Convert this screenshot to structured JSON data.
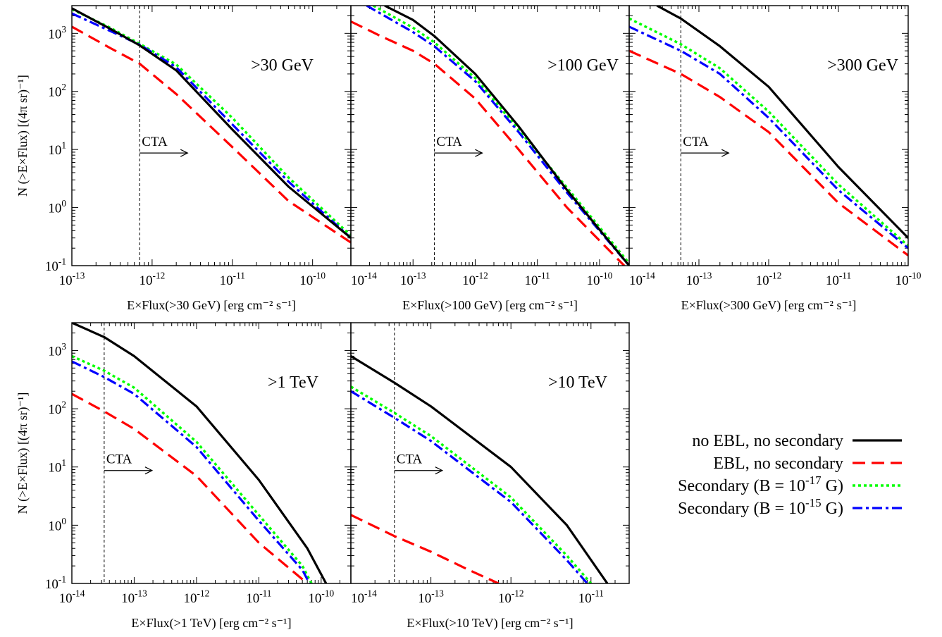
{
  "chart_data": [
    {
      "type": "line",
      "panel_label": ">30 GeV",
      "xlabel": "E×Flux(>30 GeV) [erg cm⁻² s⁻¹]",
      "ylabel": "N (>E×Flux) [(4π sr)⁻¹]",
      "x_scale": "log",
      "y_scale": "log",
      "xlim": [
        1e-13,
        3e-10
      ],
      "ylim": [
        0.1,
        3000
      ],
      "x_tick_labels": [
        "10-13",
        "10-12",
        "10-11",
        "10-10"
      ],
      "y_tick_labels": [
        "10-1",
        "100",
        "101",
        "102",
        "103"
      ],
      "cta_sensitivity": 7e-13,
      "annotation": "CTA",
      "series": [
        {
          "name": "no EBL, no secondary",
          "x": [
            1e-13,
            3e-13,
            7e-13,
            2e-12,
            1e-11,
            5e-11,
            3e-10
          ],
          "y": [
            2700,
            1200,
            620,
            230,
            22,
            2.3,
            0.3
          ]
        },
        {
          "name": "EBL, no secondary",
          "x": [
            1e-13,
            3e-13,
            7e-13,
            2e-12,
            1e-11,
            5e-11,
            3e-10
          ],
          "y": [
            1300,
            560,
            300,
            90,
            11,
            1.3,
            0.25
          ]
        },
        {
          "name": "Secondary (B = 10-17 G)",
          "x": [
            1e-13,
            3e-13,
            7e-13,
            2e-12,
            1e-11,
            5e-11,
            3e-10
          ],
          "y": [
            2600,
            1250,
            660,
            290,
            35,
            3.3,
            0.33
          ]
        },
        {
          "name": "Secondary (B = 10-15 G)",
          "x": [
            1e-13,
            3e-13,
            7e-13,
            2e-12,
            1e-11,
            5e-11,
            3e-10
          ],
          "y": [
            2200,
            1100,
            640,
            260,
            27,
            2.8,
            0.3
          ]
        }
      ]
    },
    {
      "type": "line",
      "panel_label": ">100 GeV",
      "xlabel": "E×Flux(>100 GeV) [erg cm⁻² s⁻¹]",
      "ylabel": "",
      "x_scale": "log",
      "y_scale": "log",
      "xlim": [
        1e-14,
        3e-10
      ],
      "ylim": [
        0.1,
        3000
      ],
      "x_tick_labels": [
        "10-14",
        "10-13",
        "10-12",
        "10-11",
        "10-10"
      ],
      "y_tick_labels": [],
      "cta_sensitivity": 2.2e-13,
      "annotation": "CTA",
      "series": [
        {
          "name": "no EBL, no secondary",
          "x": [
            3.5e-14,
            1e-13,
            2.2e-13,
            1e-12,
            5e-12,
            3e-11,
            3e-10
          ],
          "y": [
            3000,
            1700,
            900,
            200,
            25,
            2.0,
            0.1
          ]
        },
        {
          "name": "EBL, no secondary",
          "x": [
            1e-14,
            3e-14,
            1e-13,
            2.2e-13,
            1e-12,
            5e-12,
            3e-11,
            2.5e-10
          ],
          "y": [
            1600,
            900,
            500,
            300,
            75,
            10,
            1.0,
            0.1
          ]
        },
        {
          "name": "Secondary (B = 10-17 G)",
          "x": [
            2.3e-14,
            1e-13,
            2.2e-13,
            1e-12,
            5e-12,
            3e-11,
            3e-10
          ],
          "y": [
            3000,
            1250,
            700,
            170,
            22,
            2.2,
            0.11
          ]
        },
        {
          "name": "Secondary (B = 10-15 G)",
          "x": [
            1.8e-14,
            1e-13,
            2.2e-13,
            1e-12,
            5e-12,
            3e-11,
            3e-10
          ],
          "y": [
            3000,
            1050,
            600,
            150,
            20,
            1.8,
            0.1
          ]
        }
      ]
    },
    {
      "type": "line",
      "panel_label": ">300 GeV",
      "xlabel": "E×Flux(>300 GeV) [erg cm⁻² s⁻¹]",
      "ylabel": "",
      "x_scale": "log",
      "y_scale": "log",
      "xlim": [
        1e-14,
        1e-10
      ],
      "ylim": [
        0.1,
        3000
      ],
      "x_tick_labels": [
        "10-14",
        "10-13",
        "10-12",
        "10-11",
        "10-10"
      ],
      "y_tick_labels": [],
      "cta_sensitivity": 5.5e-14,
      "annotation": "CTA",
      "series": [
        {
          "name": "no EBL, no secondary",
          "x": [
            2.5e-14,
            5.5e-14,
            2e-13,
            1e-12,
            1e-11,
            1e-10
          ],
          "y": [
            3000,
            1800,
            600,
            120,
            5,
            0.3
          ]
        },
        {
          "name": "EBL, no secondary",
          "x": [
            1e-14,
            5.5e-14,
            2e-13,
            1e-12,
            1e-11,
            1e-10
          ],
          "y": [
            500,
            200,
            80,
            20,
            1.2,
            0.15
          ]
        },
        {
          "name": "Secondary (B = 10-17 G)",
          "x": [
            1e-14,
            5.5e-14,
            2e-13,
            1e-12,
            1e-11,
            1e-10
          ],
          "y": [
            1800,
            650,
            250,
            45,
            2.5,
            0.22
          ]
        },
        {
          "name": "Secondary (B = 10-15 G)",
          "x": [
            1e-14,
            5.5e-14,
            2e-13,
            1e-12,
            1e-11,
            1e-10
          ],
          "y": [
            1300,
            500,
            200,
            35,
            2.0,
            0.2
          ]
        }
      ]
    },
    {
      "type": "line",
      "panel_label": ">1 TeV",
      "xlabel": "E×Flux(>1 TeV) [erg cm⁻² s⁻¹]",
      "ylabel": "N (>E×Flux) [(4π sr)⁻¹]",
      "x_scale": "log",
      "y_scale": "log",
      "xlim": [
        1e-14,
        3e-10
      ],
      "ylim": [
        0.1,
        3000
      ],
      "x_tick_labels": [
        "10-14",
        "10-13",
        "10-12",
        "10-11",
        "10-10"
      ],
      "y_tick_labels": [
        "10-1",
        "100",
        "101",
        "102",
        "103"
      ],
      "cta_sensitivity": 3.3e-14,
      "annotation": "CTA",
      "series": [
        {
          "name": "no EBL, no secondary",
          "x": [
            1e-14,
            3.3e-14,
            1e-13,
            1e-12,
            1e-11,
            6e-11,
            1.2e-10
          ],
          "y": [
            3000,
            1700,
            800,
            110,
            6,
            0.4,
            0.1
          ]
        },
        {
          "name": "EBL, no secondary",
          "x": [
            1e-14,
            3.3e-14,
            1e-13,
            1e-12,
            1e-11,
            6e-11
          ],
          "y": [
            180,
            90,
            45,
            7,
            0.5,
            0.1
          ]
        },
        {
          "name": "Secondary (B = 10-17 G)",
          "x": [
            1e-14,
            3.3e-14,
            1e-13,
            1e-12,
            1e-11,
            5e-11,
            7e-11
          ],
          "y": [
            800,
            450,
            230,
            27,
            1.5,
            0.2,
            0.1
          ]
        },
        {
          "name": "Secondary (B = 10-15 G)",
          "x": [
            1e-14,
            3.3e-14,
            1e-13,
            1e-12,
            1e-11,
            5e-11,
            6.5e-11
          ],
          "y": [
            650,
            350,
            180,
            22,
            1.2,
            0.17,
            0.1
          ]
        }
      ]
    },
    {
      "type": "line",
      "panel_label": ">10 TeV",
      "xlabel": "E×Flux(>10 TeV) [erg cm⁻² s⁻¹]",
      "ylabel": "",
      "x_scale": "log",
      "y_scale": "log",
      "xlim": [
        1e-14,
        3e-11
      ],
      "ylim": [
        0.1,
        3000
      ],
      "x_tick_labels": [
        "10-14",
        "10-13",
        "10-12",
        "10-11"
      ],
      "y_tick_labels": [],
      "cta_sensitivity": 3.5e-14,
      "annotation": "CTA",
      "series": [
        {
          "name": "no EBL, no secondary",
          "x": [
            1e-14,
            3.5e-14,
            1e-13,
            1e-12,
            5e-12,
            1.6e-11
          ],
          "y": [
            800,
            280,
            110,
            10,
            1.0,
            0.1
          ]
        },
        {
          "name": "EBL, no secondary",
          "x": [
            1e-14,
            3.5e-14,
            1e-13,
            3e-13,
            7e-13
          ],
          "y": [
            1.5,
            0.65,
            0.35,
            0.17,
            0.1
          ]
        },
        {
          "name": "Secondary (B = 10-17 G)",
          "x": [
            1e-14,
            3.5e-14,
            1e-13,
            1e-12,
            5e-12,
            1e-11
          ],
          "y": [
            240,
            85,
            34,
            3,
            0.3,
            0.1
          ]
        },
        {
          "name": "Secondary (B = 10-15 G)",
          "x": [
            1e-14,
            3.5e-14,
            1e-13,
            1e-12,
            5e-12,
            9e-12
          ],
          "y": [
            200,
            70,
            28,
            2.5,
            0.25,
            0.1
          ]
        }
      ]
    }
  ],
  "legend": [
    {
      "label": "no EBL, no secondary",
      "color": "#000000",
      "style": "solid"
    },
    {
      "label": "EBL, no secondary",
      "color": "#ff0000",
      "style": "dashed"
    },
    {
      "label": "Secondary (B = 10-17 G)",
      "color": "#00ff00",
      "style": "dotted"
    },
    {
      "label": "Secondary (B = 10-15 G)",
      "color": "#0000ff",
      "style": "dash-dot"
    }
  ]
}
